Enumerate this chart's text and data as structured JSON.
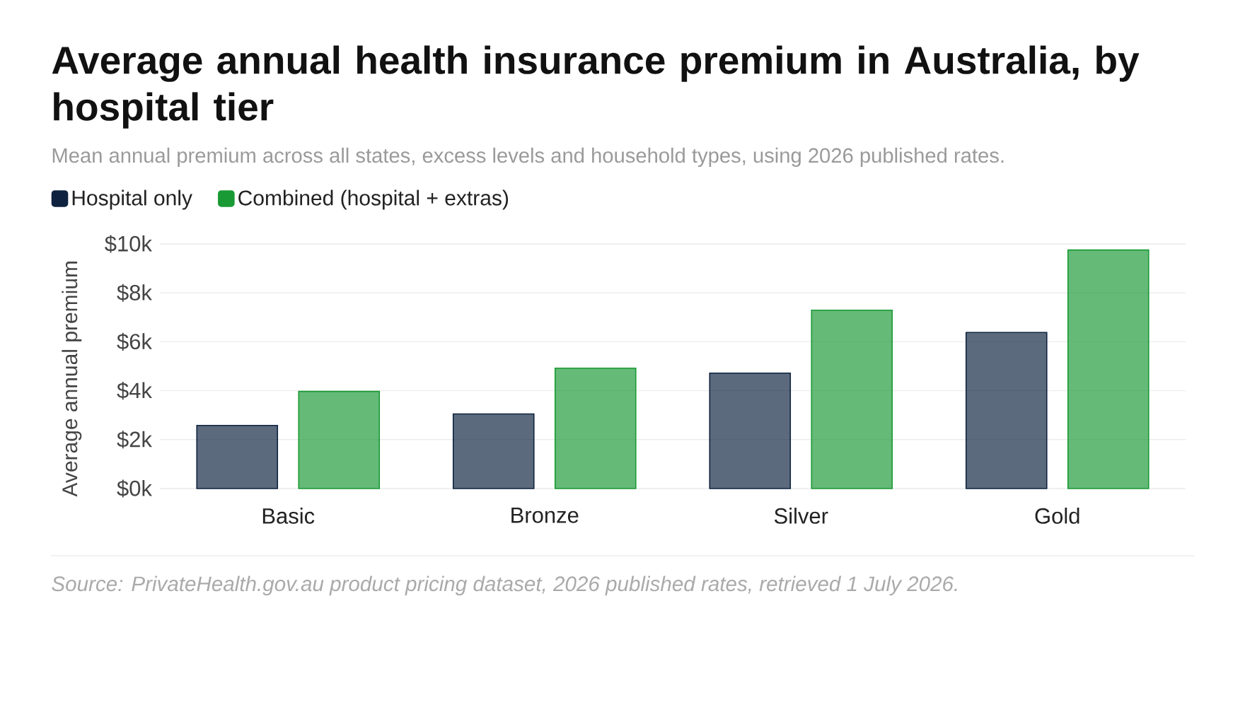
{
  "chart_data": {
    "type": "bar",
    "title": "Average annual health insurance premium in Australia, by hospital tier",
    "subtitle": "Mean annual premium across all states, excess levels and household types, using 2026 published rates.",
    "ylabel": "Average annual premium",
    "categories": [
      "Basic",
      "Bronze",
      "Silver",
      "Gold"
    ],
    "series": [
      {
        "name": "Hospital only",
        "color": "#0f2340",
        "values": [
          2580,
          3050,
          4720,
          6380
        ]
      },
      {
        "name": "Combined (hospital + extras)",
        "color": "#1a9a35",
        "values": [
          3970,
          4920,
          7290,
          9750
        ]
      }
    ],
    "ylim": [
      0,
      10000
    ],
    "yticks": [
      {
        "value": 0,
        "label": "$0k"
      },
      {
        "value": 2000,
        "label": "$2k"
      },
      {
        "value": 4000,
        "label": "$4k"
      },
      {
        "value": 6000,
        "label": "$6k"
      },
      {
        "value": 8000,
        "label": "$8k"
      },
      {
        "value": 10000,
        "label": "$10k"
      }
    ],
    "grid": "y",
    "legend": "top left",
    "annotations": [
      "Source: PrivateHealth.gov.au product pricing dataset, 2026 published rates, retrieved 1 July 2026."
    ]
  }
}
